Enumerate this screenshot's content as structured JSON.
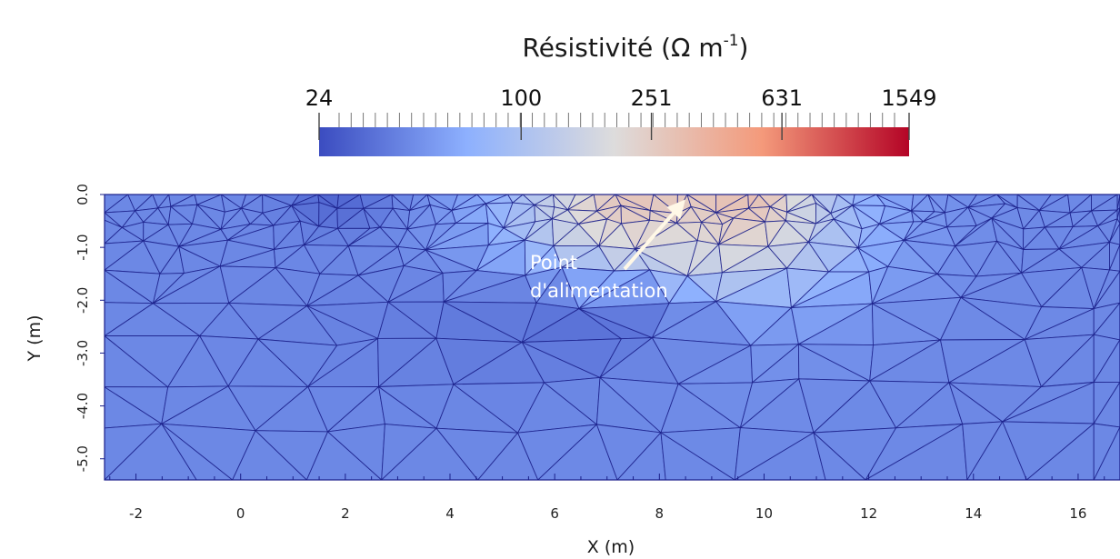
{
  "chart_data": {
    "type": "heatmap",
    "title": "Résistivité (Ω m",
    "title_sup": "-1",
    "title_end": ")",
    "colorbar": {
      "tick_labels": [
        "24",
        "100",
        "251",
        "631",
        "1549"
      ],
      "tick_values": [
        24,
        100,
        251,
        631,
        1549
      ],
      "range": [
        24,
        1549
      ],
      "scale": "log",
      "colormap": [
        "#3b4cc0",
        "#8db0fe",
        "#dddcdc",
        "#f49a7b",
        "#b40426"
      ]
    },
    "xlabel": "X (m)",
    "ylabel": "Y (m)",
    "xlim": [
      -2.6,
      16.8
    ],
    "ylim": [
      -5.4,
      0.0
    ],
    "x_ticks": [
      "-2",
      "0",
      "2",
      "4",
      "6",
      "8",
      "10",
      "12",
      "14",
      "16"
    ],
    "x_tick_values": [
      -2,
      0,
      2,
      4,
      6,
      8,
      10,
      12,
      14,
      16
    ],
    "y_ticks": [
      "0.0",
      "-1.0",
      "-2.0",
      "-3.0",
      "-4.0",
      "-5.0"
    ],
    "y_tick_values": [
      0,
      -1,
      -2,
      -3,
      -4,
      -5
    ],
    "background_value": 45,
    "anomalies": [
      {
        "x": 9.0,
        "y": 0.0,
        "value": 1549,
        "radius_x": 1.2,
        "radius_y": 0.8
      },
      {
        "x": 8.2,
        "y": -0.3,
        "value": 631,
        "radius_x": 2.0,
        "radius_y": 1.2
      },
      {
        "x": 8.5,
        "y": -0.7,
        "value": 251,
        "radius_x": 3.0,
        "radius_y": 1.9
      },
      {
        "x": 1.8,
        "y": -0.1,
        "value": 32,
        "radius_x": 1.0,
        "radius_y": 0.6
      },
      {
        "x": 6.5,
        "y": -2.5,
        "value": 36,
        "radius_x": 4.0,
        "radius_y": 1.2
      }
    ],
    "annotation": {
      "lines": [
        "Point",
        "d'alimentation"
      ],
      "target_x": 9.0,
      "target_y": 0.0
    }
  }
}
